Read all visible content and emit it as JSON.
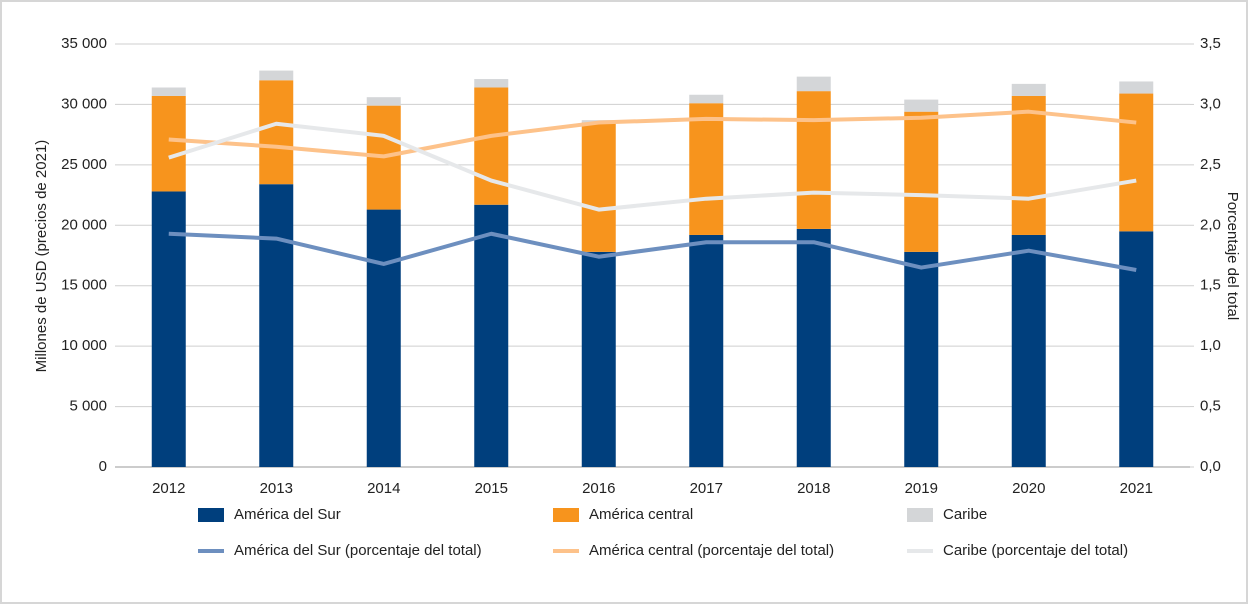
{
  "chart_data": {
    "type": "bar_line",
    "categories": [
      "2012",
      "2013",
      "2014",
      "2015",
      "2016",
      "2017",
      "2018",
      "2019",
      "2020",
      "2021"
    ],
    "ylabel": "Millones de USD (precios de 2021)",
    "y2label": "Porcentaje del total",
    "ylim": [
      0,
      35000
    ],
    "yticks": [
      0,
      {
        "value": 5000,
        "label": "5 000"
      },
      {
        "value": 10000,
        "label": "10 000"
      },
      {
        "value": 15000,
        "label": "15 000"
      },
      {
        "value": 20000,
        "label": "20 000"
      },
      {
        "value": 25000,
        "label": "25 000"
      },
      {
        "value": 30000,
        "label": "30 000"
      },
      {
        "value": 35000,
        "label": "35 000"
      }
    ],
    "y2lim": [
      0,
      3.5
    ],
    "y2ticks": [
      {
        "value": 0,
        "label": "0,0"
      },
      {
        "value": 0.5,
        "label": "0,5"
      },
      {
        "value": 1,
        "label": "1,0"
      },
      {
        "value": 1.5,
        "label": "1,5"
      },
      {
        "value": 2,
        "label": "2,0"
      },
      {
        "value": 2.5,
        "label": "2,5"
      },
      {
        "value": 3,
        "label": "3,0"
      },
      {
        "value": 3.5,
        "label": "3,5"
      }
    ],
    "grid": true,
    "stacked": true,
    "legend": "bottom",
    "series": [
      {
        "name": "América del Sur",
        "type": "bar",
        "color": "#003f7d",
        "values": [
          22800,
          23400,
          21300,
          21700,
          17800,
          19200,
          19700,
          17800,
          19200,
          19500
        ]
      },
      {
        "name": "América central",
        "type": "bar",
        "color": "#f7941d",
        "values": [
          7900,
          8600,
          8600,
          9700,
          10700,
          10900,
          11400,
          11600,
          11500,
          11400
        ]
      },
      {
        "name": "Caribe",
        "type": "bar",
        "color": "#d4d6d8",
        "values": [
          700,
          800,
          700,
          700,
          200,
          700,
          1200,
          1000,
          1000,
          1000
        ]
      },
      {
        "name": "América del Sur (porcentaje del total)",
        "type": "line",
        "axis": "y2",
        "color": "#6d8fbf",
        "values": [
          1.93,
          1.89,
          1.68,
          1.93,
          1.74,
          1.86,
          1.86,
          1.65,
          1.79,
          1.63
        ]
      },
      {
        "name": "América central (porcentaje del total)",
        "type": "line",
        "axis": "y2",
        "color": "#fdc28a",
        "values": [
          2.71,
          2.65,
          2.57,
          2.74,
          2.85,
          2.88,
          2.87,
          2.89,
          2.94,
          2.85
        ]
      },
      {
        "name": "Caribe (porcentaje del total)",
        "type": "line",
        "axis": "y2",
        "color": "#e6e8ea",
        "values": [
          2.56,
          2.84,
          2.74,
          2.37,
          2.13,
          2.22,
          2.27,
          2.25,
          2.22,
          2.37
        ]
      }
    ]
  }
}
